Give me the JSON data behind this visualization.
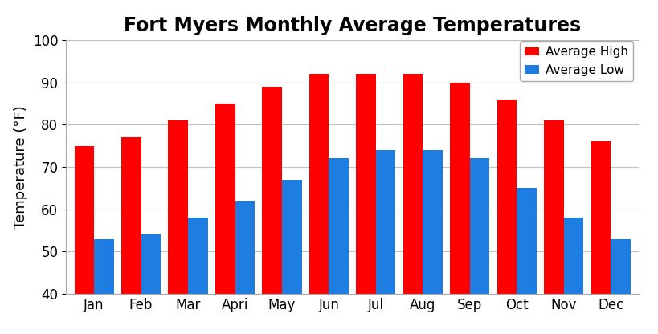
{
  "title": "Fort Myers Monthly Average Temperatures",
  "ylabel": "Temperature (°F)",
  "months": [
    "Jan",
    "Feb",
    "Mar",
    "Apri",
    "May",
    "Jun",
    "Jul",
    "Aug",
    "Sep",
    "Oct",
    "Nov",
    "Dec"
  ],
  "avg_high": [
    75,
    77,
    81,
    85,
    89,
    92,
    92,
    92,
    90,
    86,
    81,
    76
  ],
  "avg_low": [
    53,
    54,
    58,
    62,
    67,
    72,
    74,
    74,
    72,
    65,
    58,
    53
  ],
  "color_high": "#ff0000",
  "color_low": "#1e7de0",
  "ylim": [
    40,
    100
  ],
  "yticks": [
    40,
    50,
    60,
    70,
    80,
    90,
    100
  ],
  "legend_high": "Average High",
  "legend_low": "Average Low",
  "title_fontsize": 17,
  "label_fontsize": 13,
  "tick_fontsize": 12,
  "legend_fontsize": 11,
  "bar_width": 0.42,
  "background_color": "#ffffff",
  "grid_color": "#c0c0c0"
}
